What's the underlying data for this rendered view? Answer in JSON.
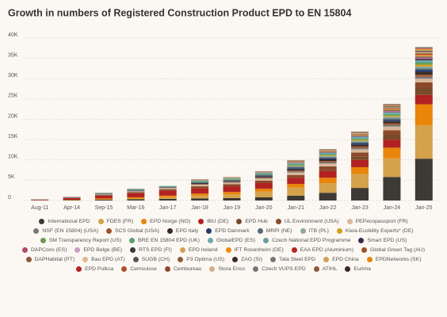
{
  "chart_data": {
    "type": "stacked_bar",
    "title": "Growth in numbers of Registered Construction Product EPD to EN 15804",
    "categories": [
      "Aug-11",
      "Apr-14",
      "Sep-15",
      "Mar-16",
      "Jan-17",
      "Jan-18",
      "Jan-19",
      "Jan-20",
      "Jan-21",
      "Jan-22",
      "Jan-23",
      "Jan-24",
      "Jan-25"
    ],
    "ylim": [
      0,
      40000
    ],
    "yticks": [
      0,
      {
        "value": 5000,
        "label": "5K"
      },
      {
        "value": 10000,
        "label": "10K"
      },
      {
        "value": 15000,
        "label": "15K"
      },
      {
        "value": 20000,
        "label": "20K"
      },
      {
        "value": 25000,
        "label": "25K"
      },
      {
        "value": 30000,
        "label": "30K"
      },
      {
        "value": 35000,
        "label": "35K"
      },
      {
        "value": 40000,
        "label": "40K"
      }
    ],
    "grid": true,
    "legend": "bottom",
    "series": [
      {
        "name": "International EPD",
        "color": "#3d3a35",
        "values": [
          30,
          100,
          200,
          300,
          400,
          500,
          600,
          800,
          1200,
          1900,
          3100,
          5800,
          10300
        ]
      },
      {
        "name": "FDES (FR)",
        "color": "#d4a24a",
        "values": [
          0,
          0,
          100,
          200,
          400,
          700,
          900,
          1400,
          2000,
          2400,
          3400,
          4600,
          8200
        ]
      },
      {
        "name": "EPD Norge (NO)",
        "color": "#e8850a",
        "values": [
          0,
          100,
          200,
          300,
          400,
          500,
          600,
          700,
          900,
          1300,
          1700,
          2600,
          5200
        ]
      },
      {
        "name": "IBU (DE)",
        "color": "#b22222",
        "values": [
          150,
          400,
          700,
          1000,
          1200,
          1300,
          1400,
          1400,
          1500,
          1700,
          1800,
          2000,
          2300
        ]
      },
      {
        "name": "EPD Hub",
        "color": "#7a4a2a",
        "values": [
          0,
          0,
          0,
          0,
          0,
          0,
          0,
          0,
          0,
          200,
          800,
          1200,
          1800
        ]
      },
      {
        "name": "UL Environment (USA)",
        "color": "#8b4a2b",
        "values": [
          0,
          50,
          200,
          300,
          400,
          500,
          500,
          600,
          700,
          900,
          1000,
          1100,
          1300
        ]
      },
      {
        "name": "PEPecopassport (FR)",
        "color": "#d9b89a",
        "values": [
          0,
          0,
          100,
          200,
          300,
          400,
          400,
          500,
          600,
          700,
          800,
          900,
          900
        ]
      },
      {
        "name": "NSF (EN 15804) (USA)",
        "color": "#777777",
        "values": [
          0,
          0,
          0,
          0,
          0,
          100,
          100,
          150,
          250,
          300,
          350,
          400,
          500
        ]
      },
      {
        "name": "SCS Global (USA)",
        "color": "#a0522d",
        "values": [
          0,
          0,
          0,
          0,
          0,
          100,
          100,
          150,
          250,
          300,
          350,
          400,
          500
        ]
      },
      {
        "name": "EPD Italy",
        "color": "#3a2a20",
        "values": [
          0,
          0,
          0,
          0,
          50,
          100,
          150,
          200,
          300,
          350,
          400,
          450,
          600
        ]
      },
      {
        "name": "EPD Danmark",
        "color": "#2a3a6a",
        "values": [
          0,
          0,
          0,
          50,
          50,
          100,
          100,
          150,
          250,
          300,
          350,
          400,
          500
        ]
      },
      {
        "name": "MRPI (NE)",
        "color": "#556b7a",
        "values": [
          50,
          100,
          150,
          200,
          200,
          250,
          250,
          300,
          350,
          350,
          350,
          400,
          400
        ]
      },
      {
        "name": "ITB (PL)",
        "color": "#8fa89a",
        "values": [
          0,
          0,
          0,
          0,
          0,
          0,
          0,
          100,
          200,
          250,
          300,
          350,
          500
        ]
      },
      {
        "name": "Kiwa-Ecobility Experts* (DE)",
        "color": "#d4a020",
        "values": [
          0,
          0,
          0,
          0,
          0,
          0,
          0,
          0,
          100,
          150,
          200,
          250,
          450
        ]
      },
      {
        "name": "SM Transparency Report (US)",
        "color": "#6a9a50",
        "values": [
          0,
          0,
          0,
          50,
          50,
          100,
          100,
          100,
          150,
          150,
          200,
          200,
          300
        ]
      },
      {
        "name": "BRE EN 15804 EPD (UK)",
        "color": "#5aa070",
        "values": [
          50,
          100,
          150,
          200,
          100,
          200,
          200,
          200,
          250,
          250,
          250,
          250,
          300
        ]
      },
      {
        "name": "GlobalEPD (ES)",
        "color": "#6aaab0",
        "values": [
          0,
          0,
          50,
          50,
          50,
          100,
          100,
          150,
          200,
          200,
          250,
          250,
          300
        ]
      },
      {
        "name": "Czech National EPD Programme",
        "color": "#6a9aa0",
        "values": [
          0,
          0,
          0,
          0,
          0,
          50,
          50,
          50,
          100,
          100,
          100,
          150,
          200
        ]
      },
      {
        "name": "Smart EPD (US)",
        "color": "#3a2a4a",
        "values": [
          0,
          0,
          0,
          0,
          0,
          0,
          0,
          0,
          0,
          0,
          50,
          100,
          300
        ]
      },
      {
        "name": "DAPCons (ES)",
        "color": "#b04a6a",
        "values": [
          0,
          0,
          0,
          0,
          0,
          50,
          50,
          50,
          100,
          100,
          100,
          150,
          200
        ]
      },
      {
        "name": "EPD Belge (BE)",
        "color": "#c9a0c0",
        "values": [
          0,
          0,
          0,
          0,
          0,
          0,
          0,
          0,
          0,
          50,
          50,
          100,
          150
        ]
      },
      {
        "name": "RTS EPD (FI)",
        "color": "#3a3a3a",
        "values": [
          0,
          0,
          0,
          0,
          0,
          0,
          0,
          0,
          50,
          100,
          100,
          150,
          200
        ]
      },
      {
        "name": "EPD Ireland",
        "color": "#d4a050",
        "values": [
          0,
          0,
          0,
          0,
          0,
          0,
          0,
          0,
          0,
          50,
          100,
          150,
          250
        ]
      },
      {
        "name": "IFT Rosenheim (DE)",
        "color": "#ee8a10",
        "values": [
          0,
          0,
          0,
          0,
          0,
          50,
          50,
          50,
          100,
          100,
          100,
          150,
          200
        ]
      },
      {
        "name": "EAA EPD (Aluminium)",
        "color": "#b52525",
        "values": [
          20,
          50,
          50,
          50,
          0,
          50,
          50,
          50,
          50,
          50,
          50,
          50,
          50
        ]
      },
      {
        "name": "Global Green Tag (AU)",
        "color": "#a0502a",
        "values": [
          0,
          0,
          0,
          0,
          0,
          0,
          0,
          50,
          100,
          100,
          100,
          150,
          200
        ]
      },
      {
        "name": "DAPHabitat (PT)",
        "color": "#8b5a3a",
        "values": [
          0,
          0,
          0,
          0,
          0,
          50,
          50,
          50,
          50,
          50,
          100,
          100,
          150
        ]
      },
      {
        "name": "Bau EPD (AT)",
        "color": "#e0b890",
        "values": [
          0,
          0,
          0,
          0,
          0,
          50,
          50,
          50,
          100,
          100,
          100,
          150,
          200
        ]
      },
      {
        "name": "SUGB (CH)",
        "color": "#555555",
        "values": [
          0,
          0,
          0,
          0,
          0,
          0,
          0,
          0,
          0,
          50,
          50,
          100,
          100
        ]
      },
      {
        "name": "P3 Optima (US)",
        "color": "#8a5c3c",
        "values": [
          0,
          0,
          0,
          0,
          0,
          0,
          0,
          0,
          0,
          0,
          50,
          100,
          150
        ]
      },
      {
        "name": "ZAG (SI)",
        "color": "#3b2b21",
        "values": [
          0,
          0,
          0,
          0,
          0,
          0,
          0,
          0,
          50,
          50,
          50,
          100,
          100
        ]
      },
      {
        "name": "Tata Steel EPD",
        "color": "#787878",
        "values": [
          0,
          0,
          0,
          0,
          0,
          0,
          0,
          0,
          50,
          50,
          50,
          50,
          100
        ]
      },
      {
        "name": "EPD China",
        "color": "#d2a252",
        "values": [
          0,
          0,
          0,
          0,
          0,
          0,
          0,
          0,
          0,
          0,
          50,
          100,
          200
        ]
      },
      {
        "name": "EPDNetworks (SK)",
        "color": "#e9860b",
        "values": [
          0,
          0,
          0,
          0,
          0,
          0,
          0,
          0,
          0,
          0,
          0,
          50,
          150
        ]
      },
      {
        "name": "EPD Polksa",
        "color": "#b32323",
        "values": [
          0,
          0,
          0,
          0,
          0,
          0,
          0,
          0,
          0,
          0,
          0,
          50,
          100
        ]
      },
      {
        "name": "Cemsuisse",
        "color": "#b0502a",
        "values": [
          0,
          0,
          0,
          0,
          0,
          0,
          0,
          0,
          0,
          0,
          50,
          50,
          50
        ]
      },
      {
        "name": "Cembureau",
        "color": "#8c4b2c",
        "values": [
          0,
          0,
          0,
          0,
          0,
          0,
          0,
          0,
          0,
          0,
          50,
          50,
          50
        ]
      },
      {
        "name": "Stora Enso",
        "color": "#d0b090",
        "values": [
          0,
          0,
          0,
          0,
          0,
          0,
          0,
          0,
          0,
          0,
          0,
          50,
          50
        ]
      },
      {
        "name": "Czech VUPS EPD",
        "color": "#767676",
        "values": [
          0,
          0,
          0,
          0,
          0,
          0,
          0,
          0,
          0,
          0,
          0,
          50,
          100
        ]
      },
      {
        "name": "ATIHL",
        "color": "#8b5b3b",
        "values": [
          0,
          0,
          0,
          0,
          0,
          0,
          0,
          0,
          0,
          0,
          0,
          50,
          50
        ]
      },
      {
        "name": "Eurima",
        "color": "#3a2a22",
        "values": [
          0,
          0,
          0,
          0,
          0,
          0,
          0,
          0,
          0,
          0,
          50,
          50,
          100
        ]
      }
    ]
  }
}
